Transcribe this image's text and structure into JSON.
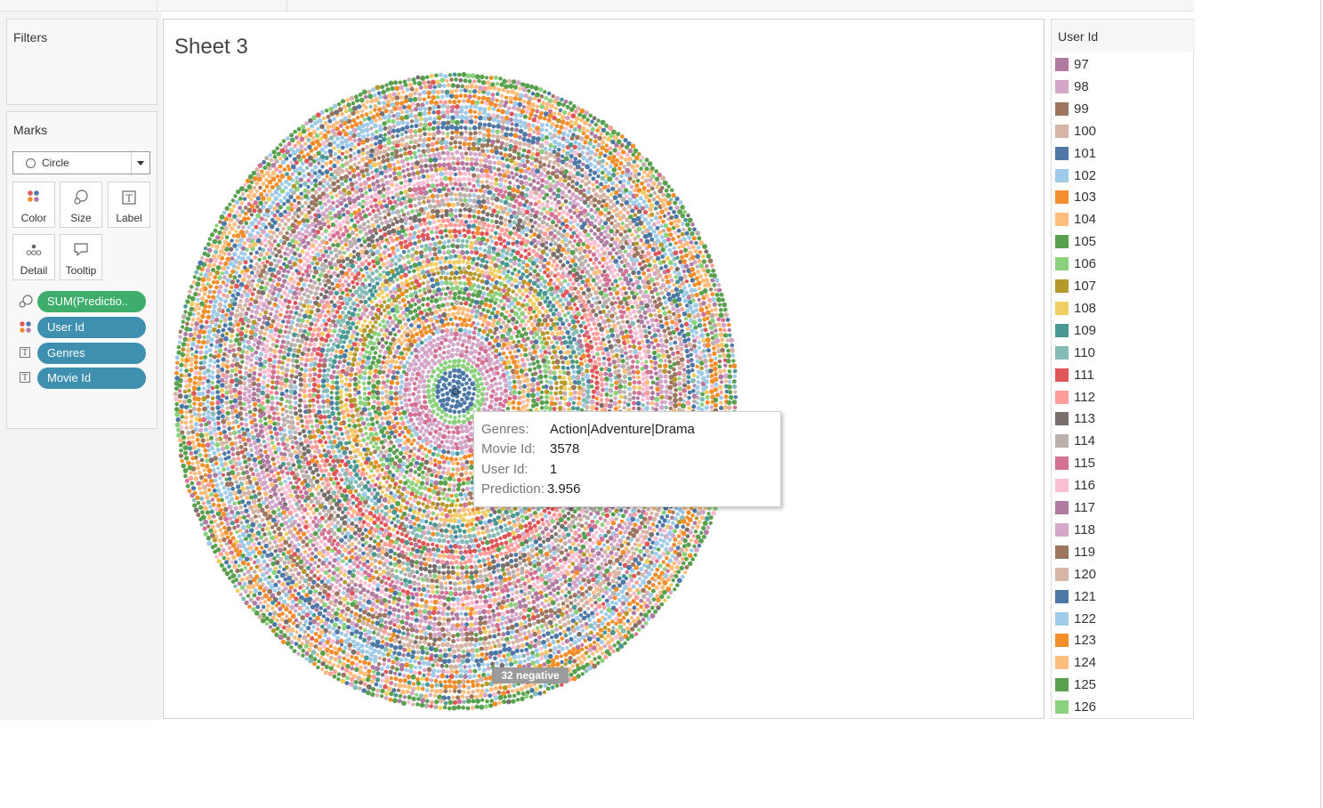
{
  "filters": {
    "title": "Filters"
  },
  "marks": {
    "title": "Marks",
    "mark_type": "Circle",
    "buttons": {
      "color": "Color",
      "size": "Size",
      "label": "Label",
      "detail": "Detail",
      "tooltip": "Tooltip"
    },
    "pills": {
      "size": "SUM(Predictio..",
      "color": "User Id",
      "label1": "Genres",
      "label2": "Movie Id"
    }
  },
  "sheet": {
    "title": "Sheet 3",
    "negative_badge": "32 negative"
  },
  "tooltip": {
    "genres_key": "Genres:",
    "genres_val": "Action|Adventure|Drama",
    "movie_key": "Movie Id:",
    "movie_val": "3578",
    "user_key": "User Id:",
    "user_val": "1",
    "pred_key": "Prediction:",
    "pred_val": "3.956"
  },
  "legend": {
    "title": "User Id",
    "items": [
      {
        "label": "97",
        "color": "#b07aa1"
      },
      {
        "label": "98",
        "color": "#d4a6c8"
      },
      {
        "label": "99",
        "color": "#9d7660"
      },
      {
        "label": "100",
        "color": "#d7b5a6"
      },
      {
        "label": "101",
        "color": "#4e79a7"
      },
      {
        "label": "102",
        "color": "#a0cbe8"
      },
      {
        "label": "103",
        "color": "#f28e2b"
      },
      {
        "label": "104",
        "color": "#ffbe7d"
      },
      {
        "label": "105",
        "color": "#59a14f"
      },
      {
        "label": "106",
        "color": "#8cd17d"
      },
      {
        "label": "107",
        "color": "#b6992d"
      },
      {
        "label": "108",
        "color": "#f1ce63"
      },
      {
        "label": "109",
        "color": "#499894"
      },
      {
        "label": "110",
        "color": "#86bcb6"
      },
      {
        "label": "111",
        "color": "#e15759"
      },
      {
        "label": "112",
        "color": "#ff9d9a"
      },
      {
        "label": "113",
        "color": "#79706e"
      },
      {
        "label": "114",
        "color": "#bab0ac"
      },
      {
        "label": "115",
        "color": "#d37295"
      },
      {
        "label": "116",
        "color": "#fabfd2"
      },
      {
        "label": "117",
        "color": "#b07aa1"
      },
      {
        "label": "118",
        "color": "#d4a6c8"
      },
      {
        "label": "119",
        "color": "#9d7660"
      },
      {
        "label": "120",
        "color": "#d7b5a6"
      },
      {
        "label": "121",
        "color": "#4e79a7"
      },
      {
        "label": "122",
        "color": "#a0cbe8"
      },
      {
        "label": "123",
        "color": "#f28e2b"
      },
      {
        "label": "124",
        "color": "#ffbe7d"
      },
      {
        "label": "125",
        "color": "#59a14f"
      },
      {
        "label": "126",
        "color": "#8cd17d"
      }
    ]
  }
}
